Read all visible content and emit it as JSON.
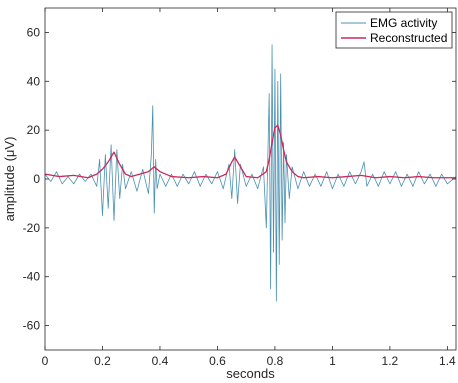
{
  "chart_data": {
    "type": "line",
    "xlabel": "seconds",
    "ylabel": "amplitude (μV)",
    "xlim": [
      0,
      1.43
    ],
    "ylim": [
      -70,
      70
    ],
    "xticks": [
      0,
      0.2,
      0.4,
      0.6,
      0.8,
      1,
      1.2,
      1.4
    ],
    "xtick_labels": [
      "0",
      "0.2",
      "0.4",
      "0.6",
      "0.8",
      "1",
      "1.2",
      "1.4"
    ],
    "yticks": [
      -60,
      -40,
      -20,
      0,
      20,
      40,
      60
    ],
    "ytick_labels": [
      "-60",
      "-40",
      "-20",
      "0",
      "20",
      "40",
      "60"
    ],
    "grid": false,
    "legend_position": "top-right",
    "series": [
      {
        "name": "EMG activity",
        "color": "#4a90b0",
        "x": [
          0,
          0.02,
          0.04,
          0.06,
          0.08,
          0.1,
          0.12,
          0.14,
          0.16,
          0.18,
          0.19,
          0.2,
          0.21,
          0.22,
          0.23,
          0.24,
          0.25,
          0.26,
          0.27,
          0.28,
          0.3,
          0.32,
          0.34,
          0.36,
          0.37,
          0.375,
          0.38,
          0.385,
          0.39,
          0.4,
          0.42,
          0.44,
          0.46,
          0.48,
          0.5,
          0.52,
          0.54,
          0.56,
          0.58,
          0.6,
          0.62,
          0.64,
          0.65,
          0.66,
          0.67,
          0.68,
          0.7,
          0.72,
          0.74,
          0.76,
          0.77,
          0.78,
          0.785,
          0.79,
          0.795,
          0.8,
          0.805,
          0.81,
          0.815,
          0.82,
          0.825,
          0.83,
          0.835,
          0.84,
          0.85,
          0.86,
          0.88,
          0.9,
          0.92,
          0.94,
          0.96,
          0.98,
          1,
          1.02,
          1.04,
          1.06,
          1.08,
          1.1,
          1.11,
          1.12,
          1.14,
          1.16,
          1.18,
          1.2,
          1.22,
          1.24,
          1.26,
          1.28,
          1.3,
          1.32,
          1.34,
          1.36,
          1.38,
          1.4,
          1.43
        ],
        "values": [
          2,
          -1,
          3,
          -2,
          1,
          -2,
          2,
          -1,
          2,
          -3,
          8,
          -15,
          10,
          -12,
          14,
          -17,
          12,
          -8,
          6,
          -4,
          3,
          -5,
          4,
          -6,
          10,
          30,
          -14,
          8,
          -4,
          2,
          -3,
          2,
          -3,
          2,
          -2,
          3,
          -3,
          2,
          -2,
          3,
          -4,
          6,
          -8,
          12,
          -10,
          6,
          -3,
          2,
          -4,
          5,
          -20,
          35,
          -45,
          55,
          -30,
          45,
          -50,
          40,
          -35,
          43,
          -25,
          15,
          -18,
          10,
          -8,
          5,
          -4,
          3,
          -3,
          2,
          -3,
          3,
          -4,
          2,
          -3,
          3,
          -2,
          3,
          7,
          -3,
          2,
          -3,
          3,
          -2,
          3,
          -3,
          2,
          -3,
          3,
          -2,
          2,
          -3,
          2,
          -2,
          1
        ]
      },
      {
        "name": "Reconstructed",
        "color": "#cc2a5a",
        "x": [
          0,
          0.05,
          0.1,
          0.15,
          0.18,
          0.2,
          0.22,
          0.24,
          0.26,
          0.28,
          0.3,
          0.33,
          0.36,
          0.38,
          0.4,
          0.44,
          0.5,
          0.55,
          0.6,
          0.63,
          0.65,
          0.66,
          0.68,
          0.7,
          0.74,
          0.77,
          0.78,
          0.79,
          0.8,
          0.81,
          0.82,
          0.83,
          0.84,
          0.86,
          0.88,
          0.9,
          0.95,
          1,
          1.05,
          1.1,
          1.15,
          1.2,
          1.25,
          1.3,
          1.35,
          1.43
        ],
        "values": [
          2,
          1,
          1.5,
          0.5,
          2,
          4,
          7,
          11,
          6,
          2,
          1,
          2,
          3,
          5,
          3,
          1,
          0.5,
          1,
          0.5,
          2,
          7,
          9,
          5,
          1,
          0.5,
          3,
          8,
          15,
          21,
          22,
          18,
          12,
          7,
          3,
          1,
          0.5,
          1,
          0.5,
          1,
          1.5,
          0.5,
          1,
          0.5,
          1,
          0.5,
          0.5
        ]
      }
    ]
  }
}
